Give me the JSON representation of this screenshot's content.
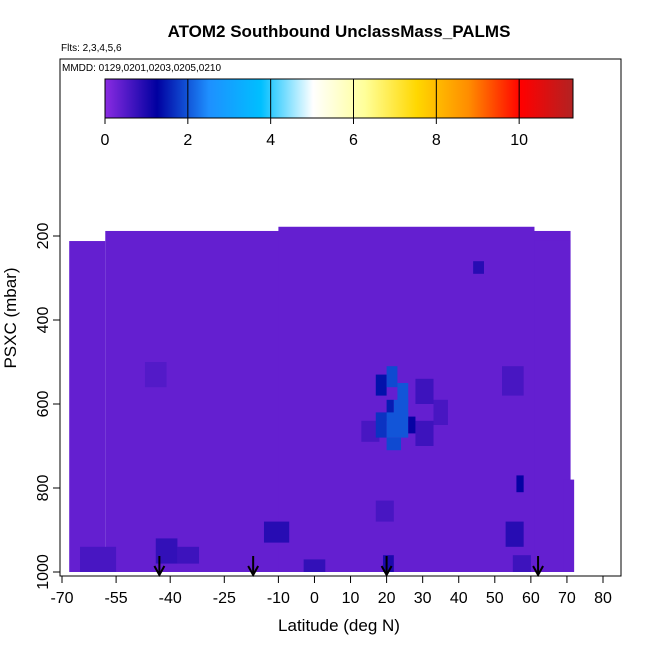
{
  "chart_data": {
    "type": "heatmap",
    "title": "ATOM2 Southbound UnclassMass_PALMS",
    "flights_label": "Flts: 2,3,4,5,6",
    "dates_label": "MMDD: 0129,0201,0203,0205,0210",
    "xlabel": "Latitude (deg N)",
    "ylabel": "PSXC (mbar)",
    "xlim": [
      -70,
      85
    ],
    "ylim": [
      1000,
      0
    ],
    "x_ticks": [
      -70,
      -55,
      -40,
      -25,
      -10,
      0,
      10,
      20,
      30,
      40,
      50,
      60,
      70,
      80
    ],
    "y_ticks": [
      200,
      400,
      600,
      800,
      1000
    ],
    "colorbar": {
      "min": 0,
      "max": 11.3,
      "ticks": [
        0,
        2,
        4,
        6,
        8,
        10
      ],
      "colors": [
        "#8a2be2",
        "#0000a0",
        "#1e90ff",
        "#00bfff",
        "#ffffff",
        "#ffff99",
        "#ffd700",
        "#ff8c00",
        "#ff0000",
        "#b22222"
      ]
    },
    "background_value": 0.35,
    "cells": [
      {
        "lat": [
          -65,
          -55
        ],
        "p": [
          940,
          1000
        ],
        "v": 0.6
      },
      {
        "lat": [
          -47,
          -41
        ],
        "p": [
          500,
          560
        ],
        "v": 0.5
      },
      {
        "lat": [
          -44,
          -38
        ],
        "p": [
          920,
          980
        ],
        "v": 0.8
      },
      {
        "lat": [
          -38,
          -32
        ],
        "p": [
          940,
          980
        ],
        "v": 0.7
      },
      {
        "lat": [
          -14,
          -7
        ],
        "p": [
          880,
          930
        ],
        "v": 0.9
      },
      {
        "lat": [
          -3,
          3
        ],
        "p": [
          970,
          1000
        ],
        "v": 0.8
      },
      {
        "lat": [
          13,
          18
        ],
        "p": [
          640,
          690
        ],
        "v": 0.6
      },
      {
        "lat": [
          17,
          20
        ],
        "p": [
          530,
          580
        ],
        "v": 1.4
      },
      {
        "lat": [
          20,
          23
        ],
        "p": [
          510,
          560
        ],
        "v": 1.9
      },
      {
        "lat": [
          23,
          26
        ],
        "p": [
          550,
          600
        ],
        "v": 2.0
      },
      {
        "lat": [
          20,
          22
        ],
        "p": [
          590,
          640
        ],
        "v": 1.5
      },
      {
        "lat": [
          22,
          26
        ],
        "p": [
          590,
          640
        ],
        "v": 2.0
      },
      {
        "lat": [
          17,
          20
        ],
        "p": [
          620,
          680
        ],
        "v": 1.7
      },
      {
        "lat": [
          20,
          26
        ],
        "p": [
          620,
          680
        ],
        "v": 2.0
      },
      {
        "lat": [
          26,
          28
        ],
        "p": [
          630,
          670
        ],
        "v": 1.2
      },
      {
        "lat": [
          20,
          24
        ],
        "p": [
          680,
          710
        ],
        "v": 1.9
      },
      {
        "lat": [
          28,
          33
        ],
        "p": [
          540,
          600
        ],
        "v": 0.7
      },
      {
        "lat": [
          28,
          33
        ],
        "p": [
          640,
          700
        ],
        "v": 0.7
      },
      {
        "lat": [
          17,
          22
        ],
        "p": [
          830,
          880
        ],
        "v": 0.6
      },
      {
        "lat": [
          19,
          22
        ],
        "p": [
          960,
          1000
        ],
        "v": 1.0
      },
      {
        "lat": [
          33,
          37
        ],
        "p": [
          590,
          650
        ],
        "v": 0.6
      },
      {
        "lat": [
          44,
          47
        ],
        "p": [
          260,
          290
        ],
        "v": 0.9
      },
      {
        "lat": [
          52,
          58
        ],
        "p": [
          510,
          580
        ],
        "v": 0.6
      },
      {
        "lat": [
          56,
          58
        ],
        "p": [
          770,
          810
        ],
        "v": 1.2
      },
      {
        "lat": [
          53,
          58
        ],
        "p": [
          880,
          940
        ],
        "v": 0.9
      },
      {
        "lat": [
          55,
          60
        ],
        "p": [
          960,
          1000
        ],
        "v": 0.7
      }
    ],
    "arrows_lat": [
      -43,
      -17,
      20,
      62
    ]
  }
}
